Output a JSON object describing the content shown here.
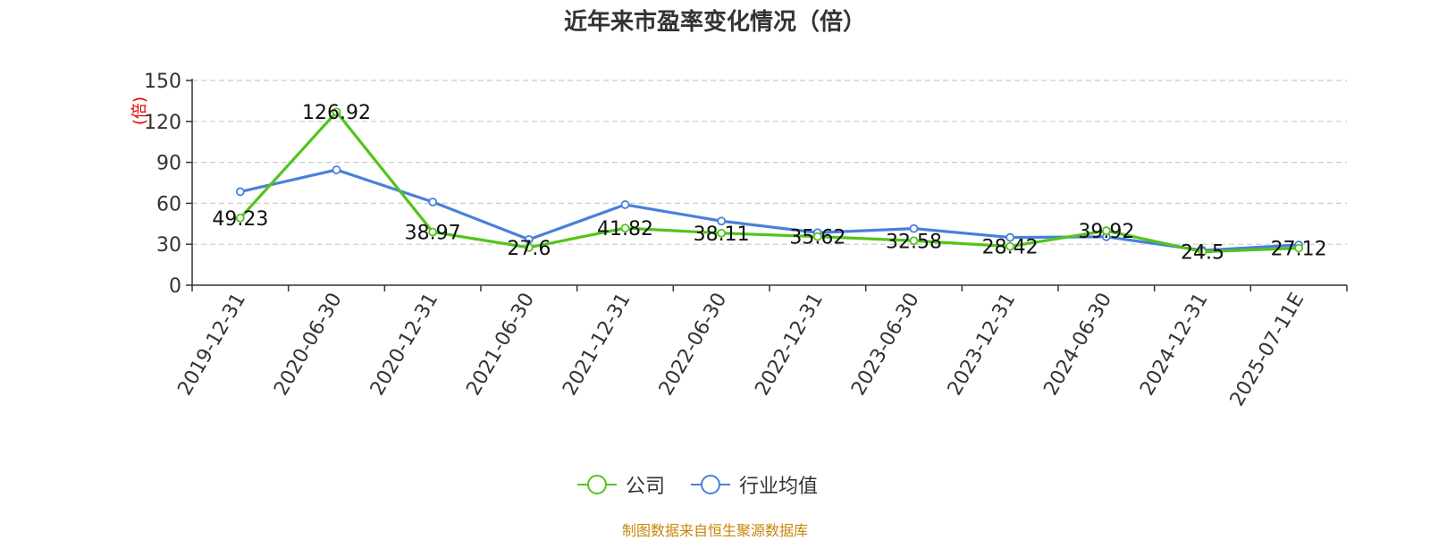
{
  "title": "近年来市盈率变化情况（倍）",
  "source": "制图数据来自恒生聚源数据库",
  "chart_data": {
    "type": "line",
    "title": "近年来市盈率变化情况（倍）",
    "ylabel": "(倍)",
    "xlabel": "",
    "ylim": [
      0,
      150
    ],
    "yticks": [
      0,
      30,
      60,
      90,
      120,
      150
    ],
    "grid": true,
    "legend_position": "bottom",
    "categories": [
      "2019-12-31",
      "2020-06-30",
      "2020-12-31",
      "2021-06-30",
      "2021-12-31",
      "2022-06-30",
      "2022-12-31",
      "2023-06-30",
      "2023-12-31",
      "2024-06-30",
      "2024-12-31",
      "2025-07-11E"
    ],
    "series": [
      {
        "name": "公司",
        "color": "#52c41a",
        "values": [
          49.23,
          126.92,
          38.97,
          27.6,
          41.82,
          38.11,
          35.62,
          32.58,
          28.42,
          39.92,
          24.5,
          27.12
        ],
        "labels": [
          "49.23",
          "126.92",
          "38.97",
          "27.6",
          "41.82",
          "38.11",
          "35.62",
          "32.58",
          "28.42",
          "39.92",
          "24.5",
          "27.12"
        ]
      },
      {
        "name": "行业均值",
        "color": "#4a7fdb",
        "values": [
          68.5,
          84.5,
          61.0,
          33.5,
          59.0,
          47.0,
          38.5,
          41.5,
          35.0,
          35.5,
          25.5,
          29.5
        ]
      }
    ]
  }
}
